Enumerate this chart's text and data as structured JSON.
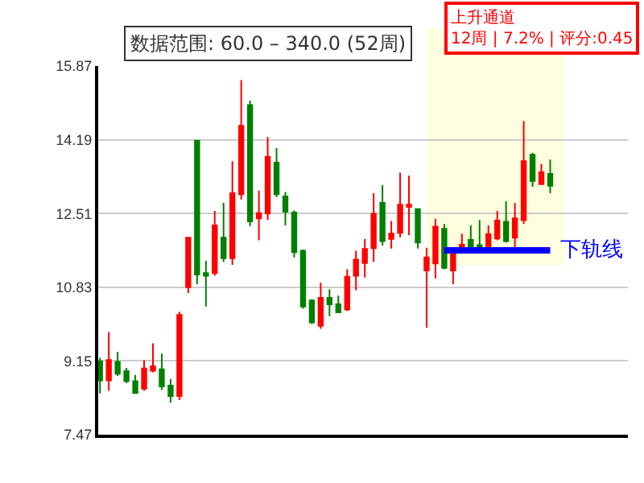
{
  "chart_data": {
    "type": "candlestick",
    "title": "数据范围: 60.0 – 340.0 (52周)",
    "categories": [
      null,
      null,
      null,
      null,
      null,
      null,
      null,
      null,
      null,
      null,
      null,
      null,
      null,
      null,
      null,
      null,
      null,
      null,
      null,
      null,
      null,
      null,
      null,
      null,
      null,
      null,
      null,
      null,
      null,
      null,
      null,
      null,
      null,
      null,
      null,
      null,
      null,
      null,
      null,
      null,
      null,
      null,
      null,
      null,
      null,
      null,
      null,
      null,
      null,
      null,
      null,
      null
    ],
    "ohlc": [
      [
        9.14,
        9.22,
        8.41,
        8.71
      ],
      [
        8.71,
        9.81,
        8.47,
        9.17
      ],
      [
        9.13,
        9.36,
        8.81,
        8.86
      ],
      [
        8.92,
        8.99,
        8.65,
        8.69
      ],
      [
        8.69,
        8.83,
        8.42,
        8.42
      ],
      [
        8.52,
        9.17,
        8.47,
        8.98
      ],
      [
        8.93,
        9.55,
        8.89,
        9.03
      ],
      [
        8.96,
        9.32,
        8.49,
        8.57
      ],
      [
        8.59,
        8.74,
        8.2,
        8.35
      ],
      [
        8.35,
        10.27,
        8.26,
        10.2
      ],
      [
        10.83,
        11.96,
        10.7,
        11.96
      ],
      [
        14.17,
        14.17,
        10.9,
        11.12
      ],
      [
        11.15,
        11.43,
        10.39,
        11.09
      ],
      [
        11.15,
        12.57,
        11.09,
        12.24
      ],
      [
        11.96,
        12.75,
        11.41,
        11.49
      ],
      [
        11.49,
        13.7,
        11.34,
        12.97
      ],
      [
        12.95,
        15.55,
        12.83,
        14.51
      ],
      [
        14.98,
        15.08,
        12.22,
        12.33
      ],
      [
        12.4,
        13.03,
        11.9,
        12.52
      ],
      [
        12.51,
        14.25,
        12.36,
        13.8
      ],
      [
        13.67,
        14.0,
        12.88,
        12.95
      ],
      [
        12.9,
        13.0,
        12.24,
        12.55
      ],
      [
        12.53,
        12.58,
        11.51,
        11.63
      ],
      [
        11.66,
        11.69,
        10.34,
        10.39
      ],
      [
        10.53,
        10.56,
        9.99,
        10.03
      ],
      [
        9.95,
        10.93,
        9.88,
        10.59
      ],
      [
        10.59,
        10.78,
        10.17,
        10.44
      ],
      [
        10.44,
        10.64,
        10.26,
        10.26
      ],
      [
        10.32,
        11.24,
        10.29,
        11.07
      ],
      [
        11.09,
        11.66,
        10.76,
        11.46
      ],
      [
        11.38,
        11.93,
        11.05,
        11.7
      ],
      [
        11.72,
        12.97,
        11.41,
        12.5
      ],
      [
        12.75,
        13.16,
        11.78,
        11.88
      ],
      [
        11.93,
        12.34,
        11.71,
        12.05
      ],
      [
        12.07,
        13.44,
        11.97,
        12.71
      ],
      [
        12.66,
        13.37,
        12.02,
        12.71
      ],
      [
        12.61,
        12.63,
        11.71,
        11.85
      ],
      [
        11.21,
        11.73,
        9.91,
        11.51
      ],
      [
        11.37,
        12.39,
        11.03,
        12.21
      ],
      [
        12.16,
        12.27,
        11.24,
        11.27
      ],
      [
        11.21,
        11.63,
        10.9,
        11.61
      ],
      [
        11.68,
        12.05,
        11.66,
        11.8
      ],
      [
        11.91,
        12.24,
        11.68,
        11.69
      ],
      [
        11.79,
        12.36,
        11.68,
        11.69
      ],
      [
        11.73,
        12.24,
        11.69,
        12.04
      ],
      [
        11.94,
        12.57,
        11.9,
        12.35
      ],
      [
        12.32,
        12.79,
        11.85,
        11.88
      ],
      [
        11.96,
        12.75,
        11.73,
        12.4
      ],
      [
        12.36,
        14.62,
        12.27,
        13.7
      ],
      [
        13.85,
        13.89,
        13.12,
        13.25
      ],
      [
        13.18,
        13.64,
        13.16,
        13.45
      ],
      [
        13.41,
        13.74,
        12.97,
        13.14
      ]
    ],
    "colors": [
      "#008000",
      "#ff0000",
      "#008000",
      "#008000",
      "#008000",
      "#ff0000",
      "#ff0000",
      "#008000",
      "#008000",
      "#ff0000",
      "#ff0000",
      "#008000",
      "#008000",
      "#ff0000",
      "#008000",
      "#ff0000",
      "#ff0000",
      "#008000",
      "#ff0000",
      "#ff0000",
      "#008000",
      "#008000",
      "#008000",
      "#008000",
      "#008000",
      "#ff0000",
      "#008000",
      "#008000",
      "#ff0000",
      "#ff0000",
      "#ff0000",
      "#ff0000",
      "#008000",
      "#ff0000",
      "#ff0000",
      "#ff0000",
      "#008000",
      "#ff0000",
      "#ff0000",
      "#008000",
      "#ff0000",
      "#ff0000",
      "#008000",
      "#008000",
      "#ff0000",
      "#ff0000",
      "#008000",
      "#ff0000",
      "#ff0000",
      "#008000",
      "#ff0000",
      "#008000"
    ],
    "series": [
      {
        "type": "line",
        "name": "下轨线",
        "color": "#0000ff",
        "values": [
          null,
          null,
          null,
          null,
          null,
          null,
          null,
          null,
          null,
          null,
          null,
          null,
          null,
          null,
          null,
          null,
          null,
          null,
          null,
          null,
          null,
          null,
          null,
          null,
          null,
          null,
          null,
          null,
          null,
          null,
          null,
          null,
          null,
          null,
          null,
          null,
          null,
          null,
          null,
          11.67,
          11.67,
          11.67,
          11.67,
          11.67,
          11.67,
          11.67,
          11.67,
          11.67,
          11.67,
          11.67,
          11.67,
          11.67
        ]
      }
    ],
    "annotations": [
      "上升通道",
      "12周 | 7.2% | 评分:0.45"
    ],
    "ylim": [
      7.47,
      15.87
    ],
    "yticks": [
      7.47,
      9.15,
      10.83,
      12.51,
      14.19,
      15.87
    ],
    "grid": "y",
    "tick_labels": "y"
  }
}
